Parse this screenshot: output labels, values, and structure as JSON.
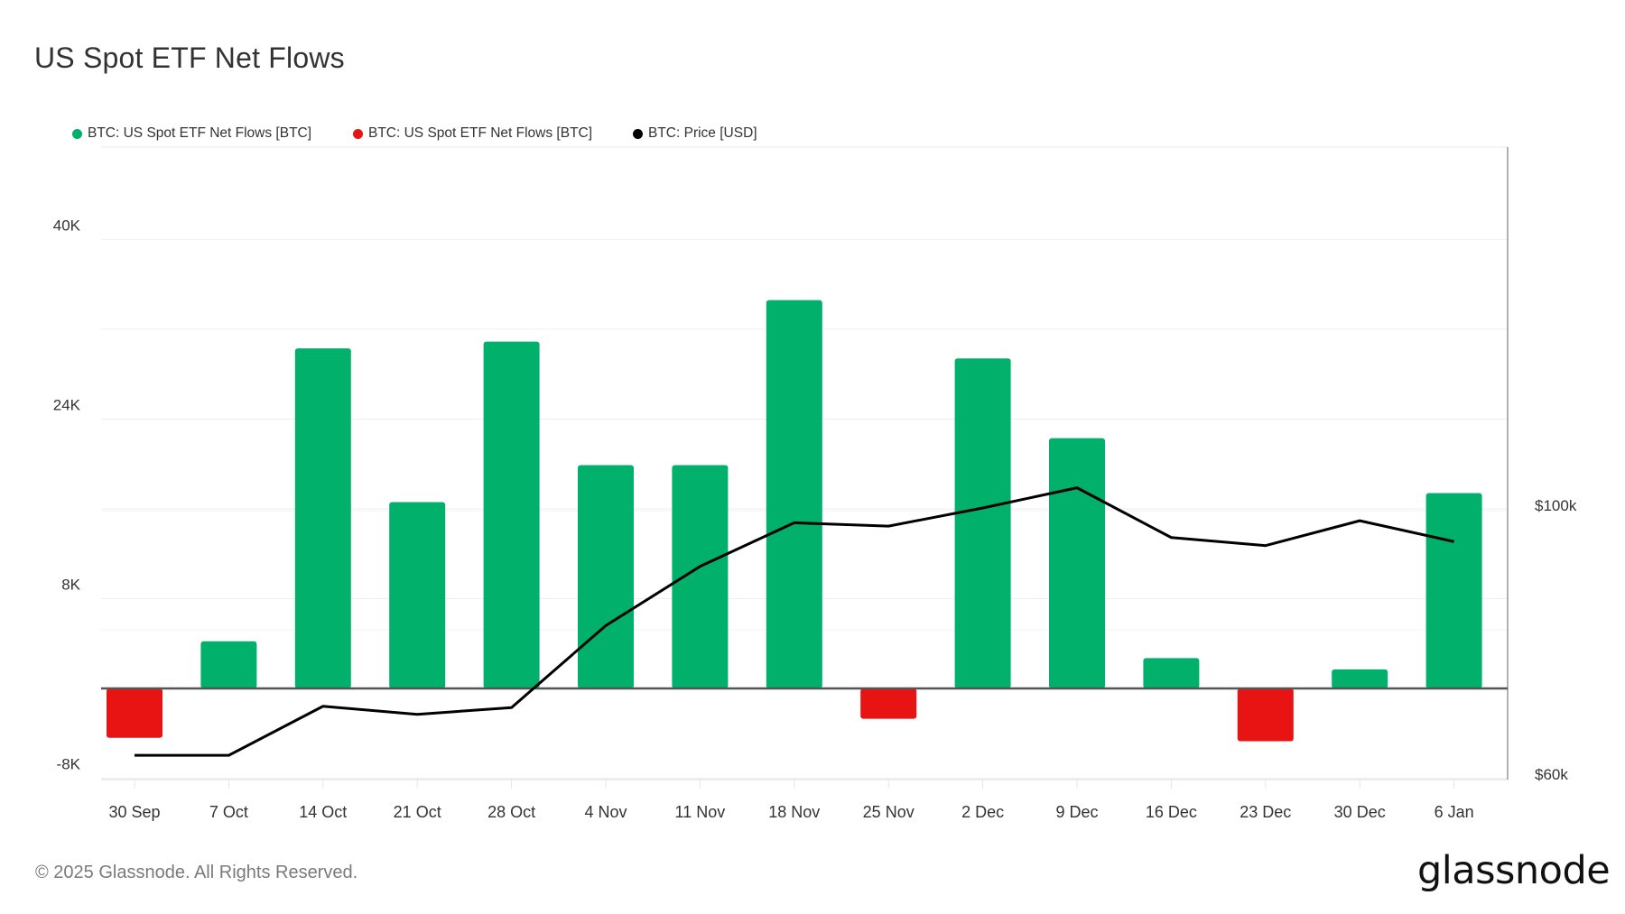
{
  "title": "US Spot ETF Net Flows",
  "legend": [
    {
      "label": "BTC: US Spot ETF Net Flows [BTC]",
      "color": "#00b06b"
    },
    {
      "label": "BTC: US Spot ETF Net Flows [BTC]",
      "color": "#e81414"
    },
    {
      "label": "BTC: Price [USD]",
      "color": "#000000"
    }
  ],
  "footer": "© 2025 Glassnode. All Rights Reserved.",
  "logo": "glassnode",
  "colors": {
    "positive": "#00b06b",
    "negative": "#e81414",
    "price": "#000000",
    "zero_line": "#555555",
    "grid": "#eeeeee"
  },
  "chart_data": {
    "type": "bar",
    "title": "US Spot ETF Net Flows",
    "categories": [
      "30 Sep",
      "7 Oct",
      "14 Oct",
      "21 Oct",
      "28 Oct",
      "4 Nov",
      "11 Nov",
      "18 Nov",
      "25 Nov",
      "2 Dec",
      "9 Dec",
      "16 Dec",
      "23 Dec",
      "30 Dec",
      "6 Jan"
    ],
    "series": [
      {
        "name": "BTC: US Spot ETF Net Flows [BTC]",
        "type": "bar",
        "axis": "left",
        "unit": "BTC",
        "values": [
          -4400,
          4200,
          30300,
          16600,
          30900,
          19900,
          19900,
          34600,
          -2700,
          29400,
          22300,
          2700,
          -4700,
          1700,
          17400
        ]
      },
      {
        "name": "BTC: Price [USD]",
        "type": "line",
        "axis": "right",
        "unit": "USD",
        "values": [
          62800,
          62800,
          70100,
          68900,
          69900,
          82100,
          90900,
          97400,
          96900,
          99600,
          102600,
          95200,
          94000,
          97700,
          94600
        ]
      }
    ],
    "left_axis": {
      "ticks": [
        "40K",
        "24K",
        "8K",
        "-8K"
      ],
      "tick_values": [
        40000,
        24000,
        8000,
        -8000
      ],
      "ylim": [
        -8000,
        48000
      ]
    },
    "right_axis": {
      "ticks": [
        "$100k",
        "$60k"
      ],
      "tick_values": [
        100000,
        60000
      ]
    },
    "xlabel": "",
    "ylabel": "",
    "grid": true,
    "legend_position": "top-left"
  }
}
